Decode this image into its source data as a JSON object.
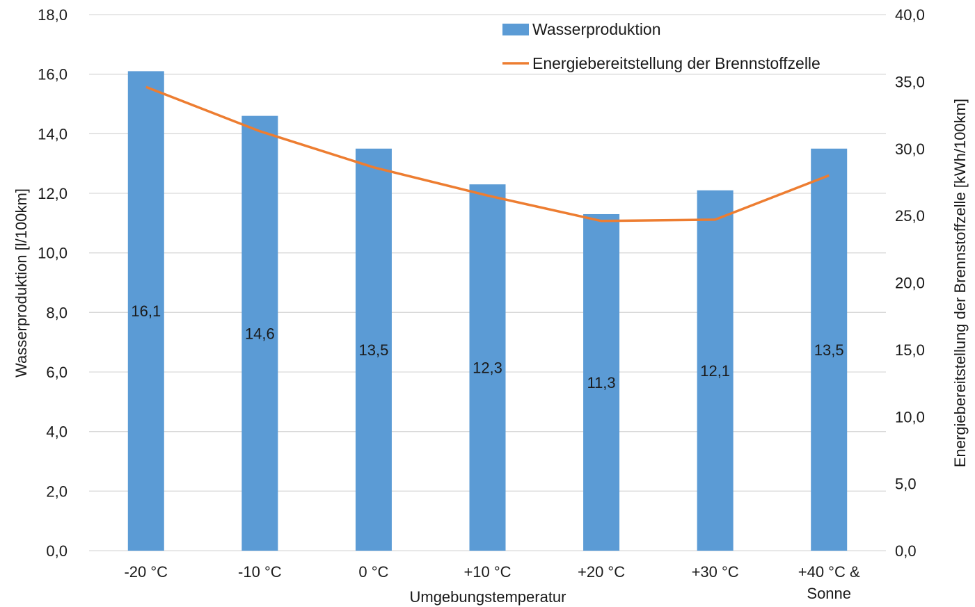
{
  "chart_data": {
    "type": "bar",
    "categories": [
      [
        "-20 °C"
      ],
      [
        "-10 °C"
      ],
      [
        "0 °C"
      ],
      [
        "+10 °C"
      ],
      [
        "+20 °C"
      ],
      [
        "+30 °C"
      ],
      [
        "+40 °C &",
        "Sonne"
      ]
    ],
    "series": [
      {
        "name": "Wasserproduktion",
        "type": "bar",
        "axis": "left",
        "color": "#5b9bd5",
        "values": [
          16.1,
          14.6,
          13.5,
          12.3,
          11.3,
          12.1,
          13.5
        ],
        "labels": [
          "16,1",
          "14,6",
          "13,5",
          "12,3",
          "11,3",
          "12,1",
          "13,5"
        ]
      },
      {
        "name": "Energiebereitstellung der Brennstoffzelle",
        "type": "line",
        "axis": "right",
        "color": "#ed7d31",
        "values": [
          34.6,
          31.3,
          28.6,
          26.5,
          24.6,
          24.7,
          28.0
        ]
      }
    ],
    "xlabel": "Umgebungstemperatur",
    "ylabel": "Wasserproduktion [l/100km]",
    "y2label": "Energiebereitstellung der Brennstoffzelle  [kWh/100km]",
    "ylim": [
      0,
      18
    ],
    "y2lim": [
      0,
      40
    ],
    "yticks": [
      "0,0",
      "2,0",
      "4,0",
      "6,0",
      "8,0",
      "10,0",
      "12,0",
      "14,0",
      "16,0",
      "18,0"
    ],
    "y2ticks": [
      "0,0",
      "5,0",
      "10,0",
      "15,0",
      "20,0",
      "25,0",
      "30,0",
      "35,0",
      "40,0"
    ],
    "grid": true,
    "legend_position": "top-right"
  }
}
